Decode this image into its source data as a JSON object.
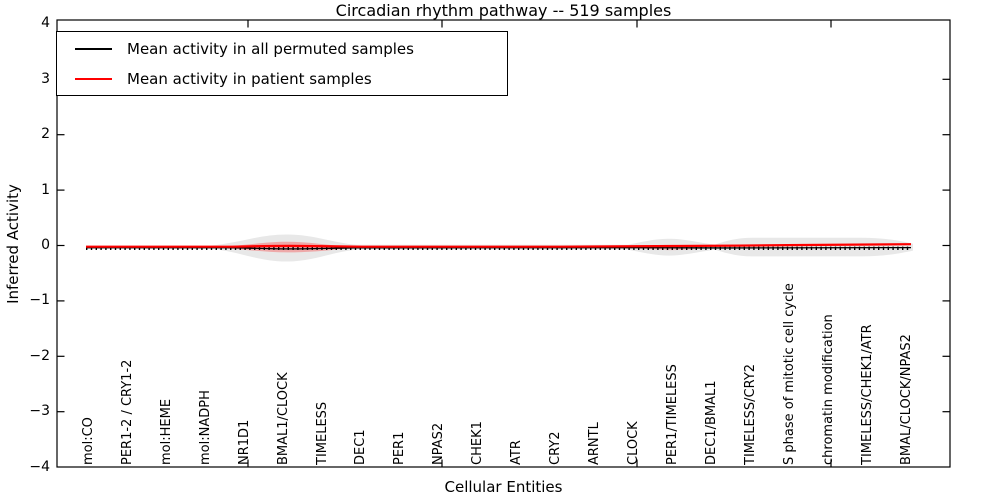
{
  "title": "Circadian rhythm pathway -- 519 samples",
  "legend": {
    "items": [
      {
        "label": "Mean activity in all permuted samples",
        "color": "#000000"
      },
      {
        "label": "Mean activity in patient samples",
        "color": "#ff0000"
      }
    ],
    "position": "upper left"
  },
  "axes": {
    "y": {
      "label": "Inferred Activity",
      "ticks": [
        "4",
        "3",
        "2",
        "1",
        "0",
        "−1",
        "−2",
        "−3",
        "−4"
      ],
      "range": [
        -4,
        4
      ]
    },
    "x": {
      "label": "Cellular Entities"
    }
  },
  "chart_data": {
    "type": "line",
    "title": "Circadian rhythm pathway -- 519 samples",
    "xlabel": "Cellular Entities",
    "ylabel": "Inferred Activity",
    "ylim": [
      -4,
      4
    ],
    "grid": false,
    "legend_position": "upper left",
    "x": [
      "mol:CO",
      "PER1-2 / CRY1-2",
      "mol:HEME",
      "mol:NADPH",
      "NR1D1",
      "BMAL1/CLOCK",
      "TIMELESS",
      "DEC1",
      "PER1",
      "NPAS2",
      "CHEK1",
      "ATR",
      "CRY2",
      "ARNTL",
      "CLOCK",
      "PER1/TIMELESS",
      "DEC1/BMAL1",
      "TIMELESS/CRY2",
      "S phase of mitotic cell cycle",
      "chromatin modification",
      "TIMELESS/CHEK1/ATR",
      "BMAL/CLOCK/NPAS2"
    ],
    "series": [
      {
        "name": "Mean activity in all permuted samples",
        "color": "#000000",
        "values": [
          0,
          0,
          0,
          0,
          -0.01,
          -0.02,
          -0.01,
          0,
          0,
          0,
          0,
          0,
          0,
          0,
          0,
          -0.01,
          0,
          0,
          0,
          0,
          0,
          0
        ]
      },
      {
        "name": "Mean activity in patient samples",
        "color": "#ff0000",
        "values": [
          0.01,
          0.01,
          0.01,
          0.01,
          0.02,
          0.03,
          0.02,
          0.01,
          0.01,
          0.01,
          0.01,
          0.01,
          0.01,
          0.01,
          0.02,
          0.03,
          0.03,
          0.04,
          0.04,
          0.05,
          0.05,
          0.06
        ]
      }
    ],
    "bands": [
      {
        "name": "permuted samples spread (gray envelope)",
        "color": "#e8e8e8",
        "half_widths": [
          0.04,
          0.04,
          0.04,
          0.04,
          0.16,
          0.24,
          0.16,
          0.06,
          0.04,
          0.04,
          0.04,
          0.04,
          0.04,
          0.04,
          0.08,
          0.16,
          0.07,
          0.17,
          0.18,
          0.18,
          0.18,
          0.12
        ]
      },
      {
        "name": "patient samples spread (red inner)",
        "color": "rgba(255,0,0,0.27)",
        "half_widths": [
          0,
          0,
          0,
          0,
          0.06,
          0.1,
          0.05,
          0,
          0,
          0,
          0,
          0,
          0,
          0,
          0.02,
          0.05,
          0.02,
          0,
          0,
          0,
          0,
          0
        ]
      }
    ]
  }
}
